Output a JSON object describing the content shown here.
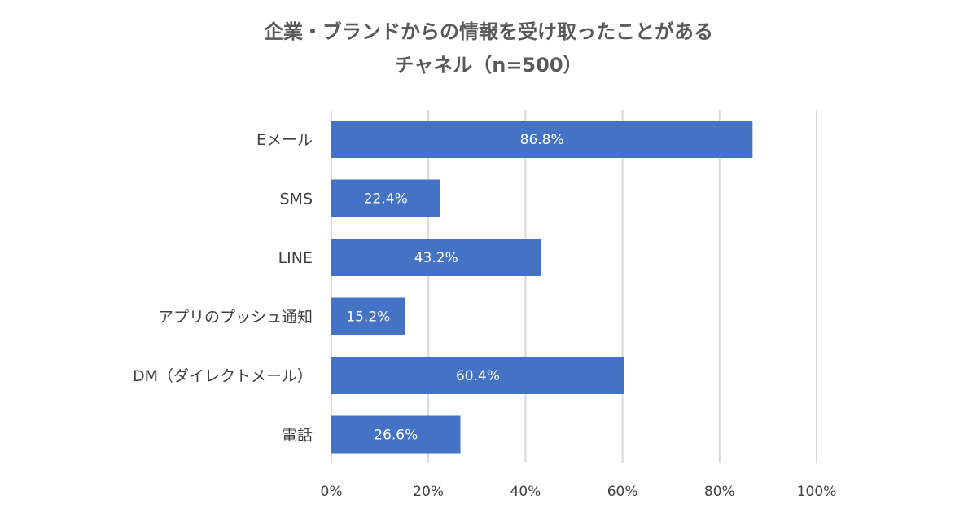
{
  "chart_data": {
    "type": "bar",
    "orientation": "horizontal",
    "title": [
      "企業・ブランドからの情報を受け取ったことがある",
      "チャネル（n=500）"
    ],
    "categories": [
      "Eメール",
      "SMS",
      "LINE",
      "アプリのプッシュ通知",
      "DM（ダイレクトメール）",
      "電話"
    ],
    "values": [
      86.8,
      22.4,
      43.2,
      15.2,
      60.4,
      26.6
    ],
    "data_labels": [
      "86.8%",
      "22.4%",
      "43.2%",
      "15.2%",
      "60.4%",
      "26.6%"
    ],
    "xlim": [
      0,
      100
    ],
    "xticks": [
      0,
      20,
      40,
      60,
      80,
      100
    ],
    "xtick_labels": [
      "0%",
      "20%",
      "40%",
      "60%",
      "80%",
      "100%"
    ],
    "grid": true,
    "legend": "none",
    "bar_color": "#4472c4"
  }
}
